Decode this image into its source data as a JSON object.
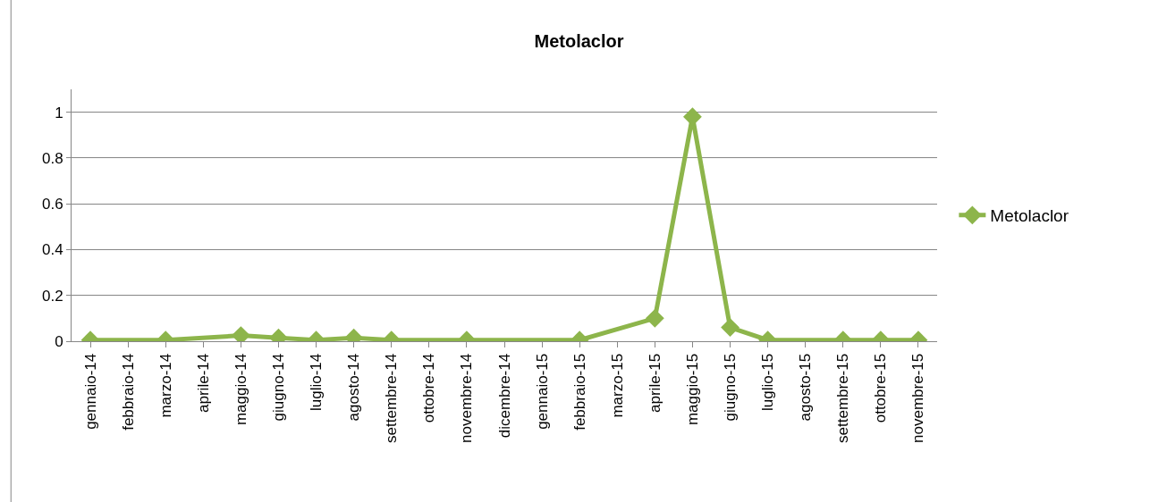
{
  "chart_data": {
    "type": "line",
    "title": "Metolaclor",
    "categories": [
      "gennaio-14",
      "febbraio-14",
      "marzo-14",
      "aprile-14",
      "maggio-14",
      "giugno-14",
      "luglio-14",
      "agosto-14",
      "settembre-14",
      "ottobre-14",
      "novembre-14",
      "dicembre-14",
      "gennaio-15",
      "febbraio-15",
      "marzo-15",
      "aprile-15",
      "maggio-15",
      "giugno-15",
      "luglio-15",
      "agosto-15",
      "settembre-15",
      "ottobre-15",
      "novembre-15"
    ],
    "series": [
      {
        "name": "Metolaclor",
        "color": "#8db54b",
        "values": [
          0.005,
          null,
          0.005,
          null,
          0.025,
          0.015,
          0.005,
          0.015,
          0.005,
          null,
          0.005,
          null,
          null,
          0.005,
          null,
          0.1,
          0.98,
          0.06,
          0.005,
          null,
          0.005,
          0.005,
          0.005
        ]
      }
    ],
    "ylim": [
      0,
      1.1
    ],
    "yticks": [
      0,
      0.2,
      0.4,
      0.6,
      0.8,
      1
    ],
    "grid": "y",
    "legend": "right",
    "marker": "diamond",
    "line_style": "solid"
  }
}
